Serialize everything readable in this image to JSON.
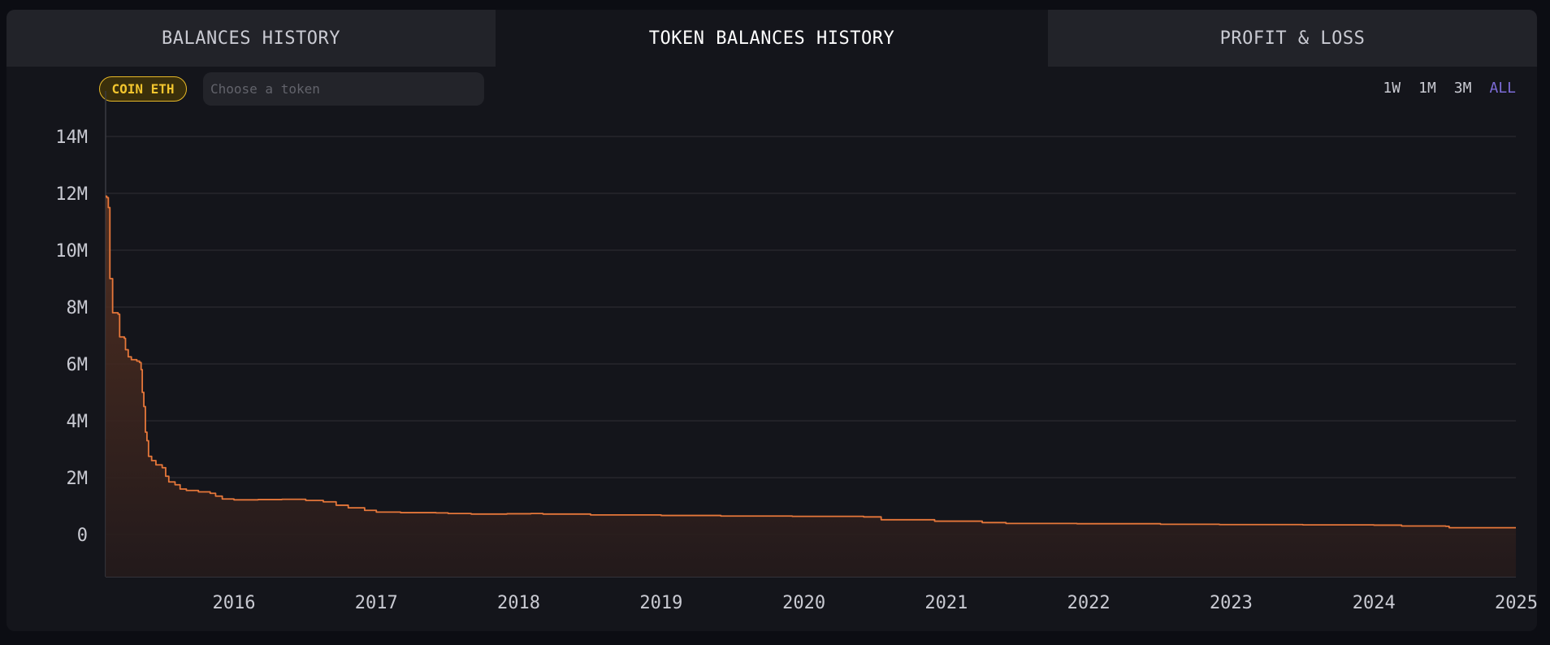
{
  "tabs": [
    {
      "label": "BALANCES HISTORY",
      "active": false
    },
    {
      "label": "TOKEN BALANCES HISTORY",
      "active": true
    },
    {
      "label": "PROFIT & LOSS",
      "active": false
    }
  ],
  "filter": {
    "coin_badge": "COIN ETH",
    "token_placeholder": "Choose a token"
  },
  "ranges": [
    {
      "label": "1W",
      "active": false
    },
    {
      "label": "1M",
      "active": false
    },
    {
      "label": "3M",
      "active": false
    },
    {
      "label": "ALL",
      "active": true
    }
  ],
  "colors": {
    "line": "#e6773a",
    "area_top": "#5a3322",
    "area_bottom": "#241a1b",
    "grid": "#2f3036",
    "accent": "#7d6cd8",
    "badge": "#f2c52e"
  },
  "chart_data": {
    "type": "area",
    "title": "",
    "xlabel": "",
    "ylabel": "",
    "x_ticks": [
      "2016",
      "2017",
      "2018",
      "2019",
      "2020",
      "2021",
      "2022",
      "2023",
      "2024",
      "2025"
    ],
    "y_ticks": [
      "14M",
      "12M",
      "10M",
      "8M",
      "6M",
      "4M",
      "2M",
      "0"
    ],
    "ylim": [
      -1500000,
      14000000
    ],
    "xlim": [
      "2015-08-07",
      "2025-06-30"
    ],
    "grid": true,
    "series": [
      {
        "values": [
          [
            "2015-08-07",
            11900000
          ],
          [
            "2015-08-10",
            11850000
          ],
          [
            "2015-08-14",
            11500000
          ],
          [
            "2015-08-18",
            9000000
          ],
          [
            "2015-08-25",
            7800000
          ],
          [
            "2015-09-08",
            7750000
          ],
          [
            "2015-09-12",
            6950000
          ],
          [
            "2015-09-24",
            6900000
          ],
          [
            "2015-09-27",
            6500000
          ],
          [
            "2015-10-04",
            6250000
          ],
          [
            "2015-10-12",
            6150000
          ],
          [
            "2015-10-26",
            6100000
          ],
          [
            "2015-11-02",
            6050000
          ],
          [
            "2015-11-06",
            5800000
          ],
          [
            "2015-11-09",
            5000000
          ],
          [
            "2015-11-13",
            4500000
          ],
          [
            "2015-11-17",
            3600000
          ],
          [
            "2015-11-21",
            3300000
          ],
          [
            "2015-11-25",
            2750000
          ],
          [
            "2015-12-03",
            2600000
          ],
          [
            "2015-12-14",
            2450000
          ],
          [
            "2015-12-30",
            2350000
          ],
          [
            "2016-01-08",
            2050000
          ],
          [
            "2016-01-16",
            1850000
          ],
          [
            "2016-02-01",
            1750000
          ],
          [
            "2016-02-14",
            1600000
          ],
          [
            "2016-03-01",
            1550000
          ],
          [
            "2016-04-01",
            1500000
          ],
          [
            "2016-05-01",
            1450000
          ],
          [
            "2016-05-15",
            1350000
          ],
          [
            "2016-06-01",
            1250000
          ],
          [
            "2016-07-01",
            1220000
          ],
          [
            "2016-09-01",
            1230000
          ],
          [
            "2016-11-01",
            1240000
          ],
          [
            "2017-01-01",
            1200000
          ],
          [
            "2017-02-15",
            1150000
          ],
          [
            "2017-03-20",
            1030000
          ],
          [
            "2017-04-20",
            940000
          ],
          [
            "2017-06-01",
            850000
          ],
          [
            "2017-07-01",
            790000
          ],
          [
            "2017-09-01",
            770000
          ],
          [
            "2017-12-01",
            760000
          ],
          [
            "2018-01-01",
            740000
          ],
          [
            "2018-03-01",
            720000
          ],
          [
            "2018-06-01",
            730000
          ],
          [
            "2018-08-01",
            740000
          ],
          [
            "2018-09-01",
            720000
          ],
          [
            "2019-01-01",
            690000
          ],
          [
            "2019-07-01",
            670000
          ],
          [
            "2019-12-01",
            650000
          ],
          [
            "2020-06-01",
            640000
          ],
          [
            "2020-12-01",
            620000
          ],
          [
            "2021-01-15",
            520000
          ],
          [
            "2021-06-01",
            470000
          ],
          [
            "2021-10-01",
            420000
          ],
          [
            "2021-12-01",
            390000
          ],
          [
            "2022-06-01",
            380000
          ],
          [
            "2023-01-01",
            360000
          ],
          [
            "2023-06-01",
            350000
          ],
          [
            "2024-01-01",
            340000
          ],
          [
            "2024-07-01",
            330000
          ],
          [
            "2024-09-10",
            300000
          ],
          [
            "2025-01-01",
            290000
          ],
          [
            "2025-01-10",
            240000
          ],
          [
            "2025-06-30",
            240000
          ]
        ]
      }
    ]
  }
}
